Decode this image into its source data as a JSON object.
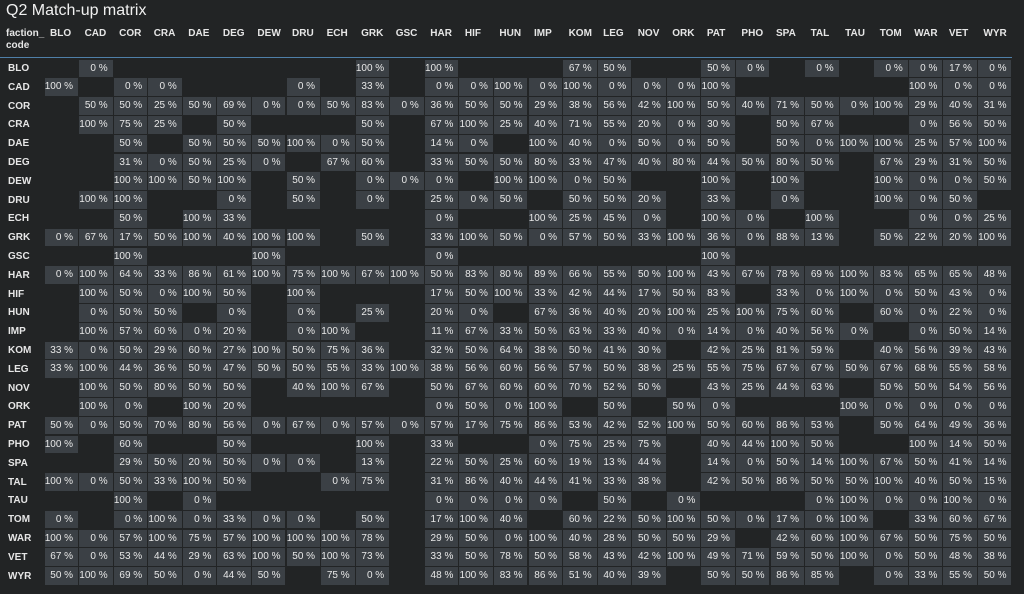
{
  "header": {
    "title": "Q2 Match-up matrix",
    "corner": [
      "faction_",
      "code"
    ],
    "columns": [
      "BLO",
      "CAD",
      "COR",
      "CRA",
      "DAE",
      "DEG",
      "DEW",
      "DRU",
      "ECH",
      "GRK",
      "GSC",
      "HAR",
      "HIF",
      "HUN",
      "IMP",
      "KOM",
      "LEG",
      "NOV",
      "ORK",
      "PAT",
      "PHO",
      "SPA",
      "TAL",
      "TAU",
      "TOM",
      "WAR",
      "VET",
      "WYR"
    ]
  },
  "table": {
    "rows": [
      {
        "label": "BLO",
        "cells": [
          null,
          "0 %",
          null,
          null,
          null,
          null,
          null,
          null,
          null,
          "100 %",
          null,
          "100 %",
          null,
          null,
          null,
          "67 %",
          "50 %",
          null,
          null,
          "50 %",
          "0 %",
          null,
          "0 %",
          null,
          "0 %",
          "0 %",
          "17 %",
          "0 %"
        ]
      },
      {
        "label": "CAD",
        "cells": [
          "100 %",
          null,
          "0 %",
          "0 %",
          null,
          null,
          null,
          "0 %",
          null,
          "33 %",
          null,
          "0 %",
          "0 %",
          "100 %",
          "0 %",
          "100 %",
          "0 %",
          "0 %",
          "0 %",
          "100 %",
          null,
          null,
          null,
          null,
          null,
          "100 %",
          "0 %",
          "0 %"
        ]
      },
      {
        "label": "COR",
        "cells": [
          null,
          "50 %",
          "50 %",
          "25 %",
          "50 %",
          "69 %",
          "0 %",
          "0 %",
          "50 %",
          "83 %",
          "0 %",
          "36 %",
          "50 %",
          "50 %",
          "29 %",
          "38 %",
          "56 %",
          "42 %",
          "100 %",
          "50 %",
          "40 %",
          "71 %",
          "50 %",
          "0 %",
          "100 %",
          "29 %",
          "40 %",
          "31 %"
        ]
      },
      {
        "label": "CRA",
        "cells": [
          null,
          "100 %",
          "75 %",
          "25 %",
          null,
          "50 %",
          null,
          null,
          null,
          "50 %",
          null,
          "67 %",
          "100 %",
          "25 %",
          "40 %",
          "71 %",
          "55 %",
          "20 %",
          "0 %",
          "30 %",
          null,
          "50 %",
          "67 %",
          null,
          null,
          "0 %",
          "56 %",
          "50 %"
        ]
      },
      {
        "label": "DAE",
        "cells": [
          null,
          null,
          "50 %",
          null,
          "50 %",
          "50 %",
          "50 %",
          "100 %",
          "0 %",
          "50 %",
          null,
          "14 %",
          "0 %",
          null,
          "100 %",
          "40 %",
          "0 %",
          "50 %",
          "0 %",
          "50 %",
          null,
          "50 %",
          "0 %",
          "100 %",
          "100 %",
          "25 %",
          "57 %",
          "100 %"
        ]
      },
      {
        "label": "DEG",
        "cells": [
          null,
          null,
          "31 %",
          "0 %",
          "50 %",
          "25 %",
          "0 %",
          null,
          "67 %",
          "60 %",
          null,
          "33 %",
          "50 %",
          "50 %",
          "80 %",
          "33 %",
          "47 %",
          "40 %",
          "80 %",
          "44 %",
          "50 %",
          "80 %",
          "50 %",
          null,
          "67 %",
          "29 %",
          "31 %",
          "50 %"
        ]
      },
      {
        "label": "DEW",
        "cells": [
          null,
          null,
          "100 %",
          "100 %",
          "50 %",
          "100 %",
          null,
          "50 %",
          null,
          "0 %",
          "0 %",
          "0 %",
          null,
          "100 %",
          "100 %",
          "0 %",
          "50 %",
          null,
          null,
          "100 %",
          null,
          "100 %",
          null,
          null,
          "100 %",
          "0 %",
          "0 %",
          "50 %"
        ]
      },
      {
        "label": "DRU",
        "cells": [
          null,
          "100 %",
          "100 %",
          null,
          null,
          "0 %",
          null,
          "50 %",
          null,
          "0 %",
          null,
          "25 %",
          "0 %",
          "50 %",
          null,
          "50 %",
          "50 %",
          "20 %",
          null,
          "33 %",
          null,
          "0 %",
          null,
          null,
          "100 %",
          "0 %",
          "50 %",
          null
        ]
      },
      {
        "label": "ECH",
        "cells": [
          null,
          null,
          "50 %",
          null,
          "100 %",
          "33 %",
          null,
          null,
          null,
          null,
          null,
          "0 %",
          null,
          null,
          "100 %",
          "25 %",
          "45 %",
          "0 %",
          null,
          "100 %",
          "0 %",
          null,
          "100 %",
          null,
          null,
          "0 %",
          "0 %",
          "25 %"
        ]
      },
      {
        "label": "GRK",
        "cells": [
          "0 %",
          "67 %",
          "17 %",
          "50 %",
          "100 %",
          "40 %",
          "100 %",
          "100 %",
          null,
          "50 %",
          null,
          "33 %",
          "100 %",
          "50 %",
          "0 %",
          "57 %",
          "50 %",
          "33 %",
          "100 %",
          "36 %",
          "0 %",
          "88 %",
          "13 %",
          null,
          "50 %",
          "22 %",
          "20 %",
          "100 %"
        ]
      },
      {
        "label": "GSC",
        "cells": [
          null,
          null,
          "100 %",
          null,
          null,
          null,
          "100 %",
          null,
          null,
          null,
          null,
          "0 %",
          null,
          null,
          null,
          null,
          null,
          null,
          null,
          "100 %",
          null,
          null,
          null,
          null,
          null,
          null,
          null,
          null
        ]
      },
      {
        "label": "HAR",
        "cells": [
          "0 %",
          "100 %",
          "64 %",
          "33 %",
          "86 %",
          "61 %",
          "100 %",
          "75 %",
          "100 %",
          "67 %",
          "100 %",
          "50 %",
          "83 %",
          "80 %",
          "89 %",
          "66 %",
          "55 %",
          "50 %",
          "100 %",
          "43 %",
          "67 %",
          "78 %",
          "69 %",
          "100 %",
          "83 %",
          "65 %",
          "65 %",
          "48 %"
        ]
      },
      {
        "label": "HIF",
        "cells": [
          null,
          "100 %",
          "50 %",
          "0 %",
          "100 %",
          "50 %",
          null,
          "100 %",
          null,
          null,
          null,
          "17 %",
          "50 %",
          "100 %",
          "33 %",
          "42 %",
          "44 %",
          "17 %",
          "50 %",
          "83 %",
          null,
          "33 %",
          "0 %",
          "100 %",
          "0 %",
          "50 %",
          "43 %",
          "0 %"
        ]
      },
      {
        "label": "HUN",
        "cells": [
          null,
          "0 %",
          "50 %",
          "50 %",
          null,
          "0 %",
          null,
          "0 %",
          null,
          "25 %",
          null,
          "20 %",
          "0 %",
          null,
          "67 %",
          "36 %",
          "40 %",
          "20 %",
          "100 %",
          "25 %",
          "100 %",
          "75 %",
          "60 %",
          null,
          "60 %",
          "0 %",
          "22 %",
          "0 %"
        ]
      },
      {
        "label": "IMP",
        "cells": [
          null,
          "100 %",
          "57 %",
          "60 %",
          "0 %",
          "20 %",
          null,
          "0 %",
          "100 %",
          null,
          null,
          "11 %",
          "67 %",
          "33 %",
          "50 %",
          "63 %",
          "33 %",
          "40 %",
          "0 %",
          "14 %",
          "0 %",
          "40 %",
          "56 %",
          "0 %",
          null,
          "0 %",
          "50 %",
          "14 %"
        ]
      },
      {
        "label": "KOM",
        "cells": [
          "33 %",
          "0 %",
          "50 %",
          "29 %",
          "60 %",
          "27 %",
          "100 %",
          "50 %",
          "75 %",
          "36 %",
          null,
          "32 %",
          "50 %",
          "64 %",
          "38 %",
          "50 %",
          "41 %",
          "30 %",
          null,
          "42 %",
          "25 %",
          "81 %",
          "59 %",
          null,
          "40 %",
          "56 %",
          "39 %",
          "43 %"
        ]
      },
      {
        "label": "LEG",
        "cells": [
          "33 %",
          "100 %",
          "44 %",
          "36 %",
          "50 %",
          "47 %",
          "50 %",
          "50 %",
          "55 %",
          "33 %",
          "100 %",
          "38 %",
          "56 %",
          "60 %",
          "56 %",
          "57 %",
          "50 %",
          "38 %",
          "25 %",
          "55 %",
          "75 %",
          "67 %",
          "67 %",
          "50 %",
          "67 %",
          "68 %",
          "55 %",
          "58 %"
        ]
      },
      {
        "label": "NOV",
        "cells": [
          null,
          "100 %",
          "50 %",
          "80 %",
          "50 %",
          "50 %",
          null,
          "40 %",
          "100 %",
          "67 %",
          null,
          "50 %",
          "67 %",
          "60 %",
          "60 %",
          "70 %",
          "52 %",
          "50 %",
          null,
          "43 %",
          "25 %",
          "44 %",
          "63 %",
          null,
          "50 %",
          "50 %",
          "54 %",
          "56 %"
        ]
      },
      {
        "label": "ORK",
        "cells": [
          null,
          "100 %",
          "0 %",
          null,
          "100 %",
          "20 %",
          null,
          null,
          null,
          null,
          null,
          "0 %",
          "50 %",
          "0 %",
          "100 %",
          null,
          "50 %",
          null,
          "50 %",
          "0 %",
          null,
          null,
          null,
          "100 %",
          "0 %",
          "0 %",
          "0 %",
          "0 %"
        ]
      },
      {
        "label": "PAT",
        "cells": [
          "50 %",
          "0 %",
          "50 %",
          "70 %",
          "80 %",
          "56 %",
          "0 %",
          "67 %",
          "0 %",
          "57 %",
          "0 %",
          "57 %",
          "17 %",
          "75 %",
          "86 %",
          "53 %",
          "42 %",
          "52 %",
          "100 %",
          "50 %",
          "60 %",
          "86 %",
          "53 %",
          null,
          "50 %",
          "64 %",
          "49 %",
          "36 %"
        ]
      },
      {
        "label": "PHO",
        "cells": [
          "100 %",
          null,
          "60 %",
          null,
          null,
          "50 %",
          null,
          null,
          null,
          "100 %",
          null,
          "33 %",
          null,
          null,
          "0 %",
          "75 %",
          "25 %",
          "75 %",
          null,
          "40 %",
          "44 %",
          "100 %",
          "50 %",
          null,
          null,
          "100 %",
          "14 %",
          "50 %"
        ]
      },
      {
        "label": "SPA",
        "cells": [
          null,
          null,
          "29 %",
          "50 %",
          "20 %",
          "50 %",
          "0 %",
          "0 %",
          null,
          "13 %",
          null,
          "22 %",
          "50 %",
          "25 %",
          "60 %",
          "19 %",
          "13 %",
          "44 %",
          null,
          "14 %",
          "0 %",
          "50 %",
          "14 %",
          "100 %",
          "67 %",
          "50 %",
          "41 %",
          "14 %"
        ]
      },
      {
        "label": "TAL",
        "cells": [
          "100 %",
          "0 %",
          "50 %",
          "33 %",
          "100 %",
          "50 %",
          null,
          null,
          "0 %",
          "75 %",
          null,
          "31 %",
          "86 %",
          "40 %",
          "44 %",
          "41 %",
          "33 %",
          "38 %",
          null,
          "42 %",
          "50 %",
          "86 %",
          "50 %",
          "50 %",
          "100 %",
          "40 %",
          "50 %",
          "15 %"
        ]
      },
      {
        "label": "TAU",
        "cells": [
          null,
          null,
          "100 %",
          null,
          "0 %",
          null,
          null,
          null,
          null,
          null,
          null,
          "0 %",
          "0 %",
          "0 %",
          "0 %",
          null,
          "50 %",
          null,
          "0 %",
          null,
          null,
          null,
          "0 %",
          "100 %",
          "0 %",
          "0 %",
          "100 %",
          "0 %"
        ]
      },
      {
        "label": "TOM",
        "cells": [
          "0 %",
          null,
          "0 %",
          "100 %",
          "0 %",
          "33 %",
          "0 %",
          "0 %",
          null,
          "50 %",
          null,
          "17 %",
          "100 %",
          "40 %",
          null,
          "60 %",
          "22 %",
          "50 %",
          "100 %",
          "50 %",
          "0 %",
          "17 %",
          "0 %",
          "100 %",
          null,
          "33 %",
          "60 %",
          "67 %"
        ]
      },
      {
        "label": "WAR",
        "cells": [
          "100 %",
          "0 %",
          "57 %",
          "100 %",
          "75 %",
          "57 %",
          "100 %",
          "100 %",
          "100 %",
          "78 %",
          null,
          "29 %",
          "50 %",
          "0 %",
          "100 %",
          "40 %",
          "28 %",
          "50 %",
          "50 %",
          "29 %",
          null,
          "42 %",
          "60 %",
          "100 %",
          "67 %",
          "50 %",
          "75 %",
          "50 %"
        ]
      },
      {
        "label": "VET",
        "cells": [
          "67 %",
          "0 %",
          "53 %",
          "44 %",
          "29 %",
          "63 %",
          "100 %",
          "50 %",
          "100 %",
          "73 %",
          null,
          "33 %",
          "50 %",
          "78 %",
          "50 %",
          "58 %",
          "43 %",
          "42 %",
          "100 %",
          "49 %",
          "71 %",
          "59 %",
          "50 %",
          "100 %",
          "0 %",
          "50 %",
          "48 %",
          "38 %"
        ]
      },
      {
        "label": "WYR",
        "cells": [
          "50 %",
          "100 %",
          "69 %",
          "50 %",
          "0 %",
          "44 %",
          "50 %",
          null,
          "75 %",
          "0 %",
          null,
          "48 %",
          "100 %",
          "83 %",
          "86 %",
          "51 %",
          "40 %",
          "39 %",
          null,
          "50 %",
          "50 %",
          "86 %",
          "85 %",
          null,
          "0 %",
          "33 %",
          "55 %",
          "50 %"
        ]
      }
    ]
  }
}
